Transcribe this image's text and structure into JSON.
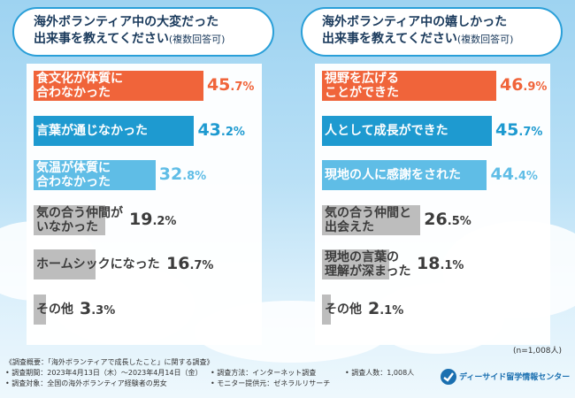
{
  "left": {
    "title_line1": "海外ボランティア中の大変だった",
    "title_line2": "出来事を教えてください",
    "title_note": "(複数回答可)"
  },
  "right": {
    "title_line1": "海外ボランティア中の嬉しかった",
    "title_line2": "出来事を教えてください",
    "title_note": "(複数回答可)"
  },
  "colors": {
    "orange": "#f0643a",
    "blue": "#1e9ad0",
    "lightblue": "#5fbde6",
    "gray": "#bdbdbd"
  },
  "chart_data": [
    {
      "type": "bar",
      "orientation": "horizontal",
      "title": "海外ボランティア中の大変だった出来事を教えてください(複数回答可)",
      "categories": [
        [
          "食文化が体質に",
          "合わなかった"
        ],
        [
          "言葉が通じなかった"
        ],
        [
          "気温が体質に",
          "合わなかった"
        ],
        [
          "気の合う仲間が",
          "いなかった"
        ],
        [
          "ホームシックになった"
        ],
        [
          "その他"
        ]
      ],
      "values": [
        45.7,
        43.2,
        32.8,
        19.2,
        16.7,
        3.3
      ],
      "value_int": [
        "45",
        "43",
        "32",
        "19",
        "16",
        "3"
      ],
      "value_dec": [
        ".7",
        ".2",
        ".8",
        ".2",
        ".7",
        ".3"
      ],
      "unit": "%",
      "bar_colors": [
        "orange",
        "blue",
        "lightblue",
        "gray",
        "gray",
        "gray"
      ]
    },
    {
      "type": "bar",
      "orientation": "horizontal",
      "title": "海外ボランティア中の嬉しかった出来事を教えてください(複数回答可)",
      "categories": [
        [
          "視野を広げる",
          "ことができた"
        ],
        [
          "人として成長ができた"
        ],
        [
          "現地の人に感謝をされた"
        ],
        [
          "気の合う仲間と",
          "出会えた"
        ],
        [
          "現地の言葉の",
          "理解が深まった"
        ],
        [
          "その他"
        ]
      ],
      "values": [
        46.9,
        45.7,
        44.4,
        26.5,
        18.1,
        2.1
      ],
      "value_int": [
        "46",
        "45",
        "44",
        "26",
        "18",
        "2"
      ],
      "value_dec": [
        ".9",
        ".7",
        ".4",
        ".5",
        ".1",
        ".1"
      ],
      "unit": "%",
      "bar_colors": [
        "orange",
        "blue",
        "lightblue",
        "gray",
        "gray",
        "gray"
      ]
    }
  ],
  "sample_size": "(n=1,008人)",
  "footer": {
    "line1": "《調査概要：「海外ボランティアで成長したこと」に関する調査》",
    "period": "• 調査期間：2023年4月13日（木）～2023年4月14日（金）",
    "method": "• 調査方法：インターネット調査",
    "count": "• 調査人数：1,008人",
    "target": "• 調査対象：全国の海外ボランティア経験者の男女",
    "provider": "• モニター提供元：ゼネラルリサーチ"
  },
  "logo_text": "ディーサイド留学情報センター"
}
